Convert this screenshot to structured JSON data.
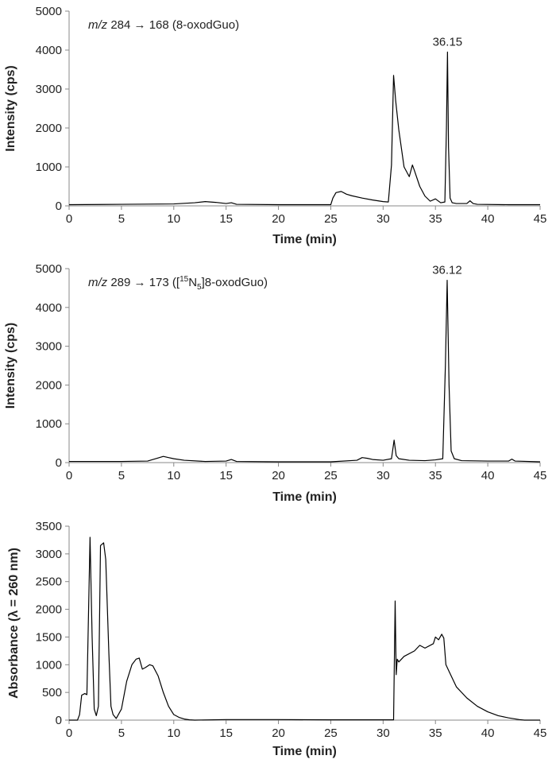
{
  "chart_data": [
    {
      "type": "line",
      "title": "",
      "annotation": {
        "italic": "m/z",
        "text": "284 → 168 (8-oxodGuo)"
      },
      "peak_label": {
        "text": "36.15",
        "x": 36.15,
        "y": 3950
      },
      "xlabel": "Time (min)",
      "ylabel": "Intensity (cps)",
      "xlim": [
        0,
        45
      ],
      "ylim": [
        0,
        5000
      ],
      "xticks": [
        0,
        5,
        10,
        15,
        20,
        25,
        30,
        35,
        40,
        45
      ],
      "yticks": [
        0,
        1000,
        2000,
        3000,
        4000,
        5000
      ],
      "grid": false,
      "series": [
        {
          "color": "#000000",
          "x": [
            0,
            5,
            10,
            12,
            13,
            14,
            15,
            15.5,
            16,
            20,
            25,
            25.2,
            25.5,
            26,
            26.5,
            27,
            28,
            29,
            30,
            30.5,
            30.8,
            31.0,
            31.2,
            31.5,
            32.0,
            32.5,
            32.8,
            33.0,
            33.5,
            34.0,
            34.5,
            35.0,
            35.5,
            35.9,
            36.05,
            36.15,
            36.25,
            36.4,
            36.6,
            37,
            38,
            38.3,
            38.6,
            39,
            42,
            45
          ],
          "y": [
            30,
            40,
            50,
            80,
            110,
            90,
            60,
            80,
            40,
            30,
            30,
            200,
            340,
            370,
            300,
            260,
            200,
            150,
            110,
            100,
            1050,
            3350,
            2700,
            1950,
            1000,
            750,
            1050,
            900,
            500,
            250,
            120,
            180,
            80,
            100,
            2000,
            3950,
            1500,
            200,
            80,
            60,
            60,
            130,
            60,
            40,
            30,
            30
          ]
        }
      ]
    },
    {
      "type": "line",
      "title": "",
      "annotation": {
        "italic": "m/z",
        "text_before": "289 → 173 ([",
        "sup": "15",
        "mid": "N",
        "sub": "5",
        "text_after": "]8-oxodGuo)"
      },
      "peak_label": {
        "text": "36.12",
        "x": 36.12,
        "y": 4700
      },
      "xlabel": "Time (min)",
      "ylabel": "Intensity (cps)",
      "xlim": [
        0,
        45
      ],
      "ylim": [
        0,
        5000
      ],
      "xticks": [
        0,
        5,
        10,
        15,
        20,
        25,
        30,
        35,
        40,
        45
      ],
      "yticks": [
        0,
        1000,
        2000,
        3000,
        4000,
        5000
      ],
      "grid": false,
      "series": [
        {
          "color": "#000000",
          "x": [
            0,
            5,
            7.5,
            8.5,
            9,
            9.5,
            10,
            11,
            13,
            15,
            15.5,
            16,
            20,
            25,
            27.5,
            28,
            28.5,
            29,
            30,
            30.8,
            31.05,
            31.25,
            31.5,
            32.5,
            34,
            35,
            35.7,
            35.95,
            36.12,
            36.3,
            36.5,
            36.8,
            37.5,
            40,
            42,
            42.3,
            42.6,
            45
          ],
          "y": [
            30,
            30,
            40,
            120,
            160,
            130,
            100,
            60,
            30,
            40,
            80,
            30,
            20,
            20,
            60,
            130,
            110,
            80,
            60,
            100,
            580,
            180,
            100,
            60,
            50,
            70,
            100,
            2500,
            4700,
            2000,
            300,
            100,
            50,
            40,
            40,
            90,
            40,
            20
          ]
        }
      ]
    },
    {
      "type": "line",
      "title": "",
      "xlabel": "Time (min)",
      "ylabel": "Absorbance (λ = 260 nm)",
      "xlim": [
        0,
        45
      ],
      "ylim": [
        0,
        3500
      ],
      "xticks": [
        0,
        5,
        10,
        15,
        20,
        25,
        30,
        35,
        40,
        45
      ],
      "yticks": [
        0,
        500,
        1000,
        1500,
        2000,
        2500,
        3000,
        3500
      ],
      "grid": false,
      "series": [
        {
          "color": "#000000",
          "x": [
            0,
            0.8,
            1.0,
            1.2,
            1.5,
            1.7,
            2.0,
            2.2,
            2.4,
            2.6,
            2.8,
            3.0,
            3.3,
            3.5,
            3.8,
            4.0,
            4.2,
            4.5,
            5.0,
            5.5,
            6.0,
            6.4,
            6.7,
            7.0,
            7.3,
            7.7,
            8.0,
            8.5,
            9.0,
            9.5,
            10.0,
            10.5,
            11.0,
            11.5,
            12,
            15,
            20,
            25,
            30,
            31.0,
            31.15,
            31.25,
            31.35,
            31.5,
            32,
            33,
            33.5,
            34,
            34.8,
            35.0,
            35.3,
            35.6,
            35.8,
            36.0,
            36.5,
            37,
            38,
            39,
            40,
            41,
            42,
            43,
            43.5,
            45
          ],
          "y": [
            0,
            0,
            100,
            450,
            480,
            460,
            3300,
            1500,
            200,
            80,
            250,
            3150,
            3200,
            2900,
            1200,
            250,
            100,
            30,
            200,
            700,
            1000,
            1100,
            1120,
            920,
            950,
            1000,
            980,
            800,
            500,
            250,
            100,
            50,
            20,
            5,
            0,
            10,
            10,
            5,
            5,
            5,
            2150,
            820,
            1100,
            1050,
            1150,
            1250,
            1350,
            1300,
            1380,
            1500,
            1450,
            1550,
            1480,
            1000,
            800,
            600,
            400,
            250,
            150,
            80,
            40,
            10,
            0,
            0
          ]
        }
      ]
    }
  ]
}
